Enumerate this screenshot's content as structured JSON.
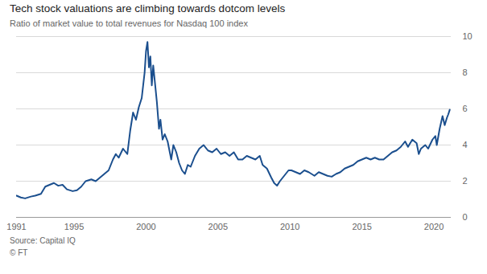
{
  "chart_data": {
    "type": "line",
    "title": "Tech stock valuations are climbing towards dotcom levels",
    "subtitle": "Ratio of market value to total revenues for Nasdaq 100 index",
    "caption": [
      "Source: Capital IQ",
      "© FT"
    ],
    "x": [
      1991.0,
      1991.3,
      1991.6,
      1992.0,
      1992.3,
      1992.7,
      1993.0,
      1993.3,
      1993.6,
      1993.9,
      1994.2,
      1994.5,
      1994.9,
      1995.2,
      1995.5,
      1995.8,
      1996.2,
      1996.5,
      1996.8,
      1997.1,
      1997.4,
      1997.7,
      1997.9,
      1998.1,
      1998.4,
      1998.7,
      1998.9,
      1999.1,
      1999.3,
      1999.5,
      1999.7,
      1999.9,
      2000.0,
      2000.1,
      2000.2,
      2000.3,
      2000.4,
      2000.5,
      2000.6,
      2000.75,
      2000.9,
      2001.0,
      2001.15,
      2001.3,
      2001.5,
      2001.75,
      2001.9,
      2002.1,
      2002.3,
      2002.5,
      2002.7,
      2002.9,
      2003.1,
      2003.4,
      2003.7,
      2004.0,
      2004.3,
      2004.6,
      2004.9,
      2005.2,
      2005.5,
      2005.8,
      2006.1,
      2006.4,
      2006.7,
      2007.0,
      2007.3,
      2007.6,
      2007.9,
      2008.1,
      2008.4,
      2008.7,
      2008.9,
      2009.1,
      2009.3,
      2009.6,
      2009.9,
      2010.1,
      2010.4,
      2010.7,
      2011.0,
      2011.3,
      2011.7,
      2012.0,
      2012.3,
      2012.6,
      2012.9,
      2013.2,
      2013.5,
      2013.8,
      2014.1,
      2014.4,
      2014.7,
      2015.0,
      2015.3,
      2015.6,
      2015.9,
      2016.2,
      2016.5,
      2016.8,
      2017.1,
      2017.4,
      2017.7,
      2018.0,
      2018.2,
      2018.5,
      2018.8,
      2018.95,
      2019.1,
      2019.4,
      2019.6,
      2019.9,
      2020.1,
      2020.2,
      2020.4,
      2020.6,
      2020.75,
      2020.9,
      2021.0,
      2021.1
    ],
    "values": [
      1.2,
      1.1,
      1.05,
      1.15,
      1.2,
      1.3,
      1.7,
      1.8,
      1.9,
      1.75,
      1.8,
      1.55,
      1.45,
      1.5,
      1.7,
      2.0,
      2.1,
      2.0,
      2.2,
      2.4,
      2.6,
      3.2,
      3.5,
      3.3,
      3.8,
      3.5,
      4.8,
      5.8,
      5.4,
      6.1,
      6.6,
      8.0,
      9.2,
      9.7,
      8.3,
      8.9,
      7.3,
      8.4,
      7.6,
      6.4,
      4.9,
      5.4,
      4.3,
      4.6,
      4.2,
      3.2,
      4.0,
      3.6,
      3.0,
      2.6,
      2.4,
      2.9,
      2.8,
      3.4,
      3.8,
      4.0,
      3.7,
      3.6,
      3.8,
      3.5,
      3.6,
      3.4,
      3.6,
      3.2,
      3.2,
      3.4,
      3.3,
      3.2,
      3.4,
      2.9,
      2.7,
      2.2,
      1.9,
      1.75,
      2.0,
      2.3,
      2.6,
      2.6,
      2.5,
      2.4,
      2.6,
      2.5,
      2.3,
      2.5,
      2.4,
      2.3,
      2.25,
      2.4,
      2.5,
      2.7,
      2.8,
      2.9,
      3.1,
      3.2,
      3.3,
      3.2,
      3.3,
      3.2,
      3.2,
      3.4,
      3.6,
      3.7,
      3.9,
      4.2,
      3.9,
      4.3,
      4.1,
      3.5,
      3.8,
      4.0,
      3.8,
      4.3,
      4.5,
      4.0,
      4.9,
      5.6,
      5.1,
      5.5,
      5.7,
      5.95
    ],
    "color": "#1b4f8e",
    "xlim": [
      1991,
      2021.2
    ],
    "xticks": [
      1991,
      1995,
      2000,
      2005,
      2010,
      2015,
      2020
    ],
    "ylim": [
      0,
      10
    ],
    "yticks": [
      0,
      2,
      4,
      6,
      8,
      10
    ],
    "grid": true
  }
}
